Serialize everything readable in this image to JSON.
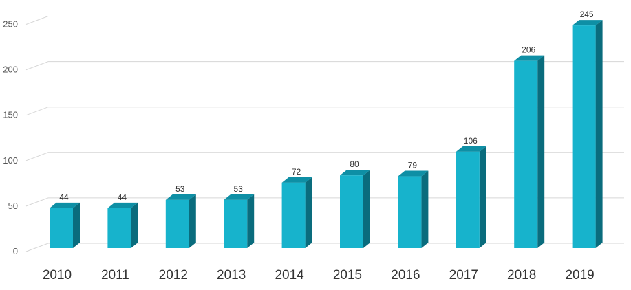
{
  "chart_data": {
    "type": "bar",
    "title": "",
    "xlabel": "",
    "ylabel": "",
    "categories": [
      "2010",
      "2011",
      "2012",
      "2013",
      "2014",
      "2015",
      "2016",
      "2017",
      "2018",
      "2019"
    ],
    "values": [
      44,
      44,
      53,
      53,
      72,
      80,
      79,
      106,
      206,
      245
    ],
    "data_labels": [
      "44",
      "44",
      "53",
      "53",
      "72",
      "80",
      "79",
      "106",
      "206",
      "245"
    ],
    "y_ticks": [
      "0",
      "50",
      "100",
      "150",
      "200",
      "250"
    ],
    "ylim": [
      0,
      270
    ],
    "grid": true,
    "legend": "none",
    "style": "3d-columns",
    "colors": {
      "bar_front": "#17b3cc",
      "bar_top": "#0e8fa5",
      "bar_side": "#0a6c7d",
      "grid": "#d6d6d6"
    }
  }
}
